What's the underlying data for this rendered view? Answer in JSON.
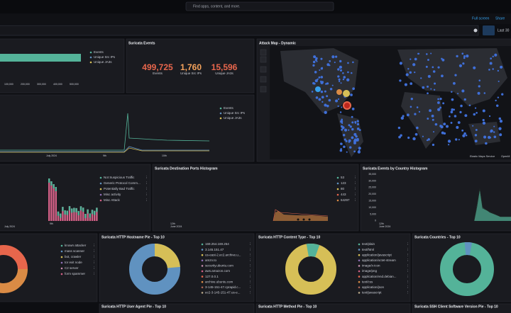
{
  "topbar": {
    "search": "Find apps, content, and more."
  },
  "toolbar": {
    "full_screen": "Full screen",
    "share": "Share"
  },
  "filter": {
    "time": "Last 30"
  },
  "events_bar": {
    "ticks": [
      "100,000",
      "200,000",
      "300,000",
      "400,000",
      "500,000"
    ],
    "legend": [
      "Events",
      "Unique Src IPs",
      "Unique JA3s"
    ]
  },
  "events_metric": {
    "title": "Suricata Events",
    "metrics": [
      {
        "value": "499,725",
        "label": "Events"
      },
      {
        "value": "1,760",
        "label": "Unique Src IPs"
      },
      {
        "value": "15,596",
        "label": "Unique JA3s"
      }
    ]
  },
  "attack_map": {
    "title": "Attack Map - Dynamic",
    "attribution": "Elastic Maps Service",
    "attribution2": "OpenM"
  },
  "events_line": {
    "legend": [
      "Events",
      "Unique Src IPs",
      "Unique JA3s"
    ],
    "ticks": [
      "July 2024",
      "9th",
      "10th"
    ]
  },
  "alert_hist": {
    "legend": [
      "Not Suspicious Traffic",
      "Generic Protocol Comm...",
      "Potentially Bad Traffic",
      "Misc activity",
      "Misc Attack"
    ],
    "ticks": [
      "9th",
      "July 2024"
    ]
  },
  "ports_hist": {
    "title": "Suricata Destination Ports Histogram",
    "legend": [
      "53",
      "123",
      "80",
      "443",
      "64297"
    ],
    "ticks": [
      "12th",
      "June 2024"
    ]
  },
  "country_hist": {
    "title": "Suricata Events by Country Histogram",
    "yticks": [
      "35,000",
      "30,000",
      "25,000",
      "20,000",
      "15,000",
      "10,000",
      "5,000",
      "0"
    ],
    "ticks": [
      "12th",
      "June 2024"
    ]
  },
  "reputation_pie": {
    "legend": [
      "known attacker",
      "mass scanner",
      "bot, crawler",
      "tor exit node",
      "C2 server",
      "form spammer"
    ]
  },
  "hostname_pie": {
    "title": "Suricata HTTP Hostname Pie - Top 10",
    "legend": [
      "169.254.169.254",
      "3.145.151.47",
      "us-east-2.ec2.archive.u...",
      "amzn.to",
      "security.ubuntu.com",
      "aws.amazon.com",
      "127.0.0.1",
      "archive.ubuntu.com",
      "3-145-151-47.cprapid.c...",
      "ec2-3-145-151-47.us-e..."
    ]
  },
  "content_pie": {
    "title": "Suricata HTTP Content Type - Top 10",
    "legend": [
      "text/plain",
      "text/html",
      "application/javascript",
      "application/octet-stream",
      "image/x-icon",
      "image/png",
      "application/vnd.debian...",
      "text/css",
      "application/json",
      "text/javascript"
    ]
  },
  "countries_pie": {
    "title": "Suricata Countries - Top 10"
  },
  "bottom_titles": [
    "Suricata HTTP User Agent Pie - Top 10",
    "Suricata HTTP Method Pie - Top 10",
    "Suricata SSH Client Software Version Pie - Top 10"
  ]
}
